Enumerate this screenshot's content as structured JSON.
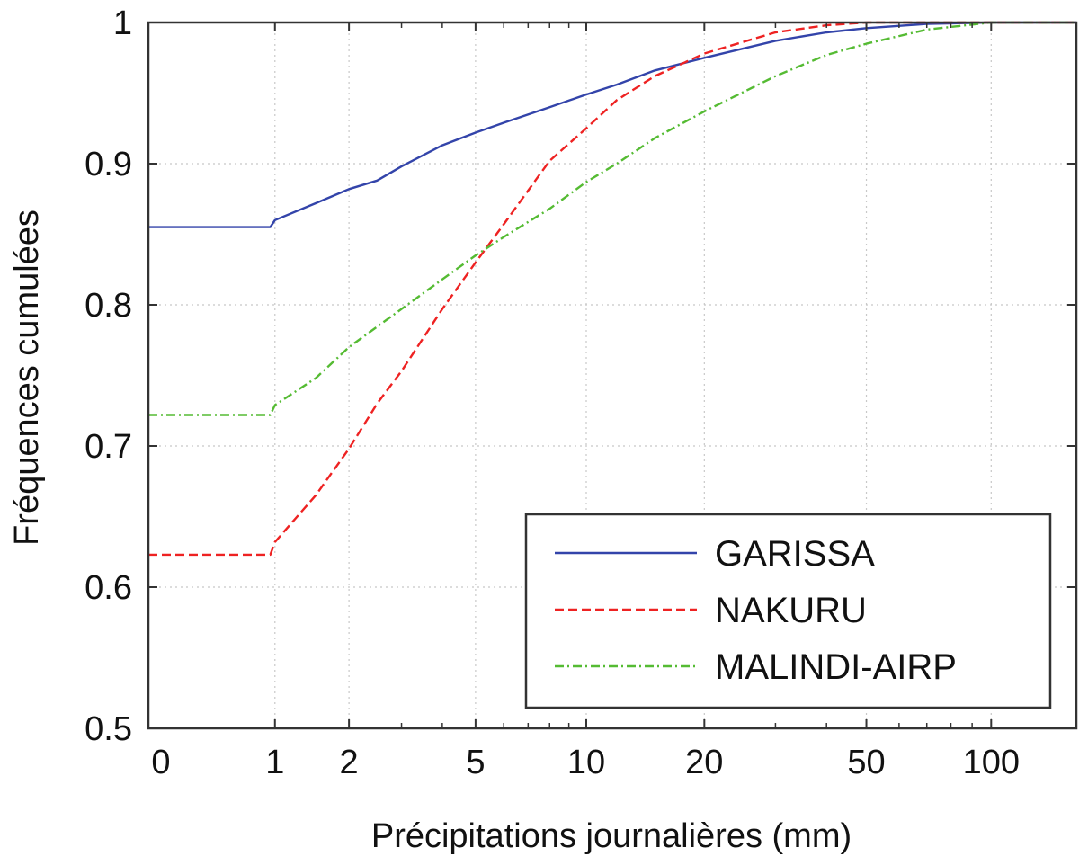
{
  "chart_data": {
    "type": "line",
    "title": "",
    "xlabel": "Précipitations journalières (mm)",
    "ylabel": "Fréquences cumulées",
    "x_scale": "log(1+x)",
    "xlim": [
      0,
      160
    ],
    "ylim": [
      0.5,
      1.0
    ],
    "x_ticks": [
      0,
      1,
      2,
      5,
      10,
      20,
      50,
      100
    ],
    "x_tick_labels": [
      "0",
      "1",
      "2",
      "5",
      "10",
      "20",
      "50",
      "100"
    ],
    "y_ticks": [
      0.5,
      0.6,
      0.7,
      0.8,
      0.9,
      1.0
    ],
    "y_tick_labels": [
      "0.5",
      "0.6",
      "0.7",
      "0.8",
      "0.9",
      "1"
    ],
    "grid": true,
    "legend_position": "lower-right",
    "series": [
      {
        "name": "GARISSA",
        "color": "#3344aa",
        "dash": "solid",
        "points": [
          [
            0,
            0.855
          ],
          [
            0.95,
            0.855
          ],
          [
            1,
            0.86
          ],
          [
            1.5,
            0.872
          ],
          [
            2,
            0.882
          ],
          [
            2.5,
            0.888
          ],
          [
            3,
            0.898
          ],
          [
            4,
            0.913
          ],
          [
            5,
            0.922
          ],
          [
            6,
            0.929
          ],
          [
            8,
            0.94
          ],
          [
            10,
            0.949
          ],
          [
            12,
            0.956
          ],
          [
            15,
            0.966
          ],
          [
            20,
            0.975
          ],
          [
            30,
            0.987
          ],
          [
            40,
            0.993
          ],
          [
            50,
            0.996
          ],
          [
            70,
            0.999
          ],
          [
            100,
            1.0
          ],
          [
            160,
            1.0
          ]
        ]
      },
      {
        "name": "NAKURU",
        "color": "#ee2222",
        "dash": "dashed",
        "points": [
          [
            0,
            0.623
          ],
          [
            0.95,
            0.623
          ],
          [
            1,
            0.632
          ],
          [
            1.5,
            0.665
          ],
          [
            2,
            0.698
          ],
          [
            2.5,
            0.73
          ],
          [
            3,
            0.753
          ],
          [
            4,
            0.797
          ],
          [
            5,
            0.83
          ],
          [
            6,
            0.857
          ],
          [
            8,
            0.902
          ],
          [
            10,
            0.925
          ],
          [
            12,
            0.945
          ],
          [
            15,
            0.962
          ],
          [
            20,
            0.978
          ],
          [
            30,
            0.993
          ],
          [
            40,
            0.998
          ],
          [
            50,
            1.0
          ],
          [
            100,
            1.0
          ],
          [
            160,
            1.0
          ]
        ]
      },
      {
        "name": "MALINDI-AIRP",
        "color": "#55bb33",
        "dash": "dash-dot",
        "points": [
          [
            0,
            0.722
          ],
          [
            0.95,
            0.722
          ],
          [
            1,
            0.729
          ],
          [
            1.5,
            0.748
          ],
          [
            2,
            0.77
          ],
          [
            3,
            0.797
          ],
          [
            4,
            0.818
          ],
          [
            5,
            0.835
          ],
          [
            6,
            0.848
          ],
          [
            8,
            0.868
          ],
          [
            10,
            0.887
          ],
          [
            12,
            0.9
          ],
          [
            15,
            0.918
          ],
          [
            20,
            0.937
          ],
          [
            30,
            0.962
          ],
          [
            40,
            0.977
          ],
          [
            50,
            0.985
          ],
          [
            70,
            0.995
          ],
          [
            100,
            1.0
          ],
          [
            160,
            1.0
          ]
        ]
      }
    ]
  }
}
